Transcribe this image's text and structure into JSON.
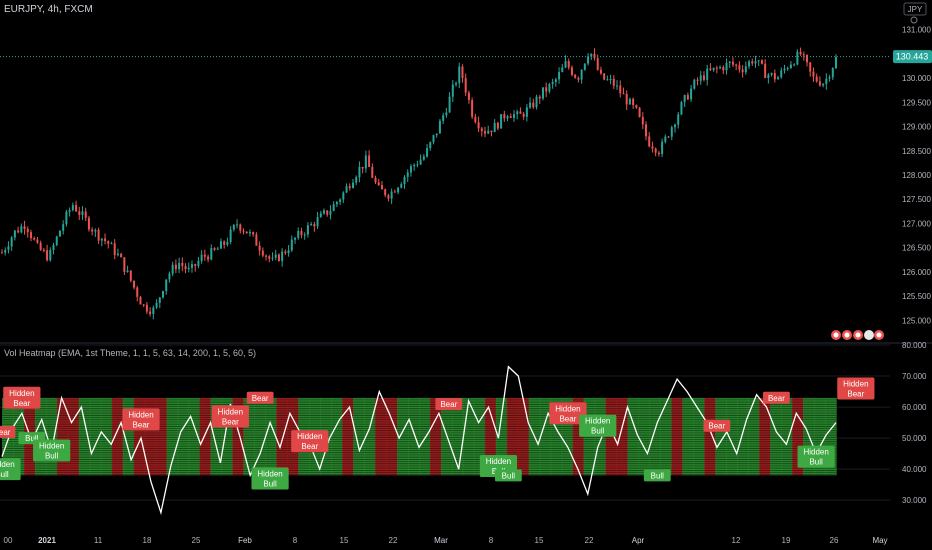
{
  "header": {
    "symbol_title": "EURJPY, 4h, FXCM",
    "currency_badge": "JPY",
    "indicator_title": "Vol Heatmap (EMA, 1st Theme, 1, 1, 5, 63, 14, 200, 1, 5, 60, 5)"
  },
  "colors": {
    "background": "#000000",
    "up_candle": "#26a69a",
    "down_candle": "#ef5350",
    "price_tag": "#26a69a",
    "osc_line": "#ffffff",
    "heat_green": "#2e9a33",
    "heat_red": "#b22222",
    "label_bear": "#e04848",
    "label_bull": "#3ea843"
  },
  "price_axis": {
    "min": 124.8,
    "max": 131.2,
    "ticks": [
      "131.000",
      "130.500",
      "130.000",
      "129.500",
      "129.000",
      "128.500",
      "128.000",
      "127.500",
      "127.000",
      "126.500",
      "126.000",
      "125.500",
      "125.000"
    ],
    "current_price": "130.443",
    "current_value": 130.443
  },
  "osc_axis": {
    "min": 22,
    "max": 80,
    "ticks": [
      "80.000",
      "70.000",
      "60.000",
      "50.000",
      "40.000",
      "30.000"
    ]
  },
  "time_axis": {
    "labels": [
      "00",
      "2021",
      "11",
      "18",
      "25",
      "Feb",
      "8",
      "15",
      "22",
      "Mar",
      "8",
      "15",
      "22",
      "Apr",
      "12",
      "19",
      "26",
      "May"
    ]
  },
  "chart_data": {
    "type": "line",
    "title": "EURJPY, 4h, FXCM",
    "price_series": {
      "name": "EURJPY",
      "points": [
        [
          0,
          126.4
        ],
        [
          1,
          126.8
        ],
        [
          2,
          127.0
        ],
        [
          3,
          126.5
        ],
        [
          4,
          126.3
        ],
        [
          5,
          126.9
        ],
        [
          6,
          127.4
        ],
        [
          7,
          127.1
        ],
        [
          8,
          126.8
        ],
        [
          9,
          126.6
        ],
        [
          10,
          126.3
        ],
        [
          11,
          125.8
        ],
        [
          12,
          125.3
        ],
        [
          13,
          125.2
        ],
        [
          14,
          125.9
        ],
        [
          15,
          126.2
        ],
        [
          16,
          126.0
        ],
        [
          17,
          126.3
        ],
        [
          18,
          126.4
        ],
        [
          19,
          126.6
        ],
        [
          20,
          127.0
        ],
        [
          21,
          126.8
        ],
        [
          22,
          126.5
        ],
        [
          23,
          126.2
        ],
        [
          24,
          126.4
        ],
        [
          25,
          126.7
        ],
        [
          26,
          126.9
        ],
        [
          27,
          127.1
        ],
        [
          28,
          127.3
        ],
        [
          29,
          127.6
        ],
        [
          30,
          128.0
        ],
        [
          31,
          128.3
        ],
        [
          32,
          127.7
        ],
        [
          33,
          127.6
        ],
        [
          34,
          127.9
        ],
        [
          35,
          128.2
        ],
        [
          36,
          128.4
        ],
        [
          37,
          128.9
        ],
        [
          38,
          129.5
        ],
        [
          39,
          130.2
        ],
        [
          40,
          129.3
        ],
        [
          41,
          128.9
        ],
        [
          42,
          129.0
        ],
        [
          43,
          129.3
        ],
        [
          44,
          129.2
        ],
        [
          45,
          129.4
        ],
        [
          46,
          129.7
        ],
        [
          47,
          129.9
        ],
        [
          48,
          130.3
        ],
        [
          49,
          130.0
        ],
        [
          50,
          130.6
        ],
        [
          51,
          130.0
        ],
        [
          52,
          129.9
        ],
        [
          53,
          129.6
        ],
        [
          54,
          129.3
        ],
        [
          55,
          128.7
        ],
        [
          56,
          128.5
        ],
        [
          57,
          129.0
        ],
        [
          58,
          129.5
        ],
        [
          59,
          129.9
        ],
        [
          60,
          130.1
        ],
        [
          61,
          130.2
        ],
        [
          62,
          130.3
        ],
        [
          63,
          130.2
        ],
        [
          64,
          130.4
        ],
        [
          65,
          130.1
        ],
        [
          66,
          130.0
        ],
        [
          67,
          130.3
        ],
        [
          68,
          130.5
        ],
        [
          69,
          130.0
        ],
        [
          70,
          129.9
        ],
        [
          71,
          130.4
        ]
      ]
    },
    "oscillator_series": {
      "name": "Vol Heatmap",
      "points": [
        [
          0,
          44
        ],
        [
          1,
          53
        ],
        [
          2,
          58
        ],
        [
          3,
          49
        ],
        [
          4,
          56
        ],
        [
          5,
          46
        ],
        [
          6,
          63
        ],
        [
          7,
          55
        ],
        [
          8,
          60
        ],
        [
          9,
          45
        ],
        [
          10,
          52
        ],
        [
          11,
          48
        ],
        [
          12,
          55
        ],
        [
          13,
          43
        ],
        [
          14,
          50
        ],
        [
          15,
          36
        ],
        [
          16,
          26
        ],
        [
          17,
          41
        ],
        [
          18,
          52
        ],
        [
          19,
          57
        ],
        [
          20,
          48
        ],
        [
          21,
          55
        ],
        [
          22,
          42
        ],
        [
          23,
          61
        ],
        [
          24,
          50
        ],
        [
          25,
          38
        ],
        [
          26,
          45
        ],
        [
          27,
          55
        ],
        [
          28,
          47
        ],
        [
          29,
          58
        ],
        [
          30,
          52
        ],
        [
          31,
          48
        ],
        [
          32,
          40
        ],
        [
          33,
          50
        ],
        [
          34,
          56
        ],
        [
          35,
          60
        ],
        [
          36,
          46
        ],
        [
          37,
          53
        ],
        [
          38,
          65
        ],
        [
          39,
          58
        ],
        [
          40,
          50
        ],
        [
          41,
          56
        ],
        [
          42,
          47
        ],
        [
          43,
          52
        ],
        [
          44,
          58
        ],
        [
          45,
          49
        ],
        [
          46,
          40
        ],
        [
          47,
          62
        ],
        [
          48,
          55
        ],
        [
          49,
          60
        ],
        [
          50,
          50
        ],
        [
          51,
          73
        ],
        [
          52,
          70
        ],
        [
          53,
          55
        ],
        [
          54,
          48
        ],
        [
          55,
          58
        ],
        [
          56,
          52
        ],
        [
          57,
          47
        ],
        [
          58,
          40
        ],
        [
          59,
          32
        ],
        [
          60,
          47
        ],
        [
          61,
          55
        ],
        [
          62,
          48
        ],
        [
          63,
          60
        ],
        [
          64,
          51
        ],
        [
          65,
          45
        ],
        [
          66,
          55
        ],
        [
          67,
          62
        ],
        [
          68,
          69
        ],
        [
          69,
          65
        ],
        [
          70,
          60
        ],
        [
          71,
          55
        ],
        [
          72,
          47
        ],
        [
          73,
          52
        ],
        [
          74,
          45
        ],
        [
          75,
          56
        ],
        [
          76,
          64
        ],
        [
          77,
          60
        ],
        [
          78,
          52
        ],
        [
          79,
          48
        ],
        [
          80,
          58
        ],
        [
          81,
          53
        ],
        [
          82,
          45
        ],
        [
          83,
          51
        ],
        [
          84,
          55
        ]
      ]
    },
    "heatmap": {
      "range": [
        38,
        63
      ],
      "pattern": [
        "g",
        "g",
        "r",
        "g",
        "g",
        "r",
        "r",
        "g",
        "g",
        "g",
        "r",
        "g",
        "r",
        "r",
        "r",
        "g",
        "g",
        "g",
        "r",
        "g",
        "g",
        "r",
        "g",
        "g",
        "g",
        "r",
        "r",
        "g",
        "g",
        "g",
        "g",
        "r",
        "g",
        "g",
        "r",
        "r",
        "g",
        "g",
        "g",
        "r",
        "g",
        "g",
        "g",
        "g",
        "r",
        "g",
        "r",
        "r",
        "g",
        "g",
        "g",
        "g",
        "r",
        "g",
        "g",
        "r",
        "r",
        "g",
        "g",
        "g",
        "g",
        "r",
        "g",
        "g",
        "r",
        "g",
        "g",
        "g",
        "g",
        "r",
        "g",
        "g",
        "r",
        "g",
        "g",
        "g"
      ]
    },
    "signals": [
      {
        "text": "Hidden Bear",
        "type": "bear",
        "x": 2,
        "y": 63
      },
      {
        "text": "Bear",
        "type": "bear",
        "x": 0,
        "y": 52
      },
      {
        "text": "Bull",
        "type": "bull",
        "x": 3,
        "y": 50
      },
      {
        "text": "Hidden Bull",
        "type": "bull",
        "x": 0,
        "y": 40
      },
      {
        "text": "Hidden Bull",
        "type": "bull",
        "x": 5,
        "y": 46
      },
      {
        "text": "Hidden Bear",
        "type": "bear",
        "x": 14,
        "y": 56
      },
      {
        "text": "Hidden Bear",
        "type": "bear",
        "x": 23,
        "y": 57
      },
      {
        "text": "Bear",
        "type": "bear",
        "x": 26,
        "y": 63
      },
      {
        "text": "Hidden Bull",
        "type": "bull",
        "x": 27,
        "y": 37
      },
      {
        "text": "Hidden Bear",
        "type": "bear",
        "x": 31,
        "y": 49
      },
      {
        "text": "Bear",
        "type": "bear",
        "x": 45,
        "y": 61
      },
      {
        "text": "Hidden Bull",
        "type": "bull",
        "x": 50,
        "y": 41
      },
      {
        "text": "Bull",
        "type": "bull",
        "x": 51,
        "y": 38
      },
      {
        "text": "Hidden Bear",
        "type": "bear",
        "x": 57,
        "y": 58
      },
      {
        "text": "Hidden Bull",
        "type": "bull",
        "x": 60,
        "y": 54
      },
      {
        "text": "Bull",
        "type": "bull",
        "x": 66,
        "y": 38
      },
      {
        "text": "Bear",
        "type": "bear",
        "x": 72,
        "y": 54
      },
      {
        "text": "Bear",
        "type": "bear",
        "x": 78,
        "y": 63
      },
      {
        "text": "Hidden Bull",
        "type": "bull",
        "x": 82,
        "y": 44
      },
      {
        "text": "Hidden Bear",
        "type": "bear",
        "x": 86,
        "y": 66
      }
    ]
  }
}
